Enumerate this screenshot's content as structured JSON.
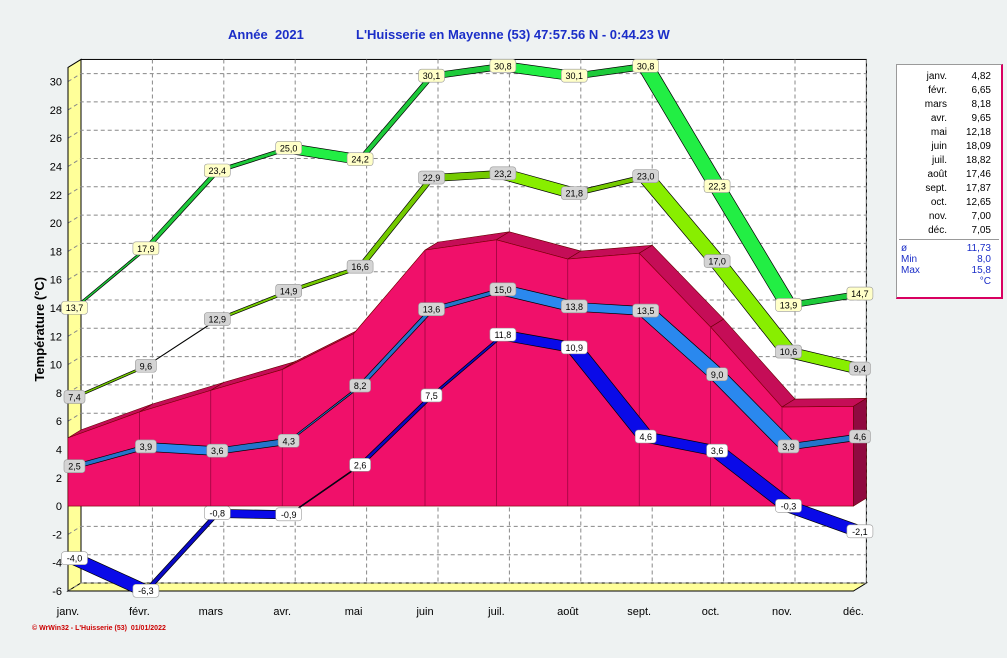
{
  "title_left": "Année  2021",
  "title_right": "L'Huisserie en Mayenne (53) 47:57.56 N - 0:44.23 W",
  "credit": "© WrWin32 - L'Huisserie (53)  01/01/2022",
  "legend": {
    "months": [
      {
        "m": "janv.",
        "v": "4,82"
      },
      {
        "m": "févr.",
        "v": "6,65"
      },
      {
        "m": "mars",
        "v": "8,18"
      },
      {
        "m": "avr.",
        "v": "9,65"
      },
      {
        "m": "mai",
        "v": "12,18"
      },
      {
        "m": "juin",
        "v": "18,09"
      },
      {
        "m": "juil.",
        "v": "18,82"
      },
      {
        "m": "août",
        "v": "17,46"
      },
      {
        "m": "sept.",
        "v": "17,87"
      },
      {
        "m": "oct.",
        "v": "12,65"
      },
      {
        "m": "nov.",
        "v": "7,00"
      },
      {
        "m": "déc.",
        "v": "7,05"
      }
    ],
    "stats": [
      {
        "k": "ø",
        "v": "11,73"
      },
      {
        "k": "Min",
        "v": "8,0"
      },
      {
        "k": "Max",
        "v": "15,8"
      },
      {
        "k": "",
        "v": "°C"
      }
    ]
  },
  "chart_data": {
    "type": "line",
    "ylabel": "Température  (°C)",
    "ylim": [
      -6,
      31
    ],
    "yticks": [
      -6,
      -4,
      -2,
      0,
      2,
      4,
      6,
      8,
      10,
      12,
      14,
      16,
      18,
      20,
      22,
      24,
      26,
      28,
      30
    ],
    "grid": true,
    "categories": [
      "janv.",
      "févr.",
      "mars",
      "avr.",
      "mai",
      "juin",
      "juil.",
      "août",
      "sept.",
      "oct.",
      "nov.",
      "déc."
    ],
    "area": {
      "values": [
        4.82,
        6.65,
        8.18,
        9.65,
        12.18,
        18.09,
        18.82,
        17.46,
        17.87,
        12.65,
        7.0,
        7.05
      ],
      "color": "#f0106a"
    },
    "series": [
      {
        "values": [
          13.7,
          17.9,
          23.4,
          25.0,
          24.2,
          30.1,
          30.8,
          30.1,
          30.8,
          22.3,
          13.9,
          14.7
        ],
        "labels": [
          "13,7",
          "17,9",
          "23,4",
          "25,0",
          "24,2",
          "30,1",
          "30,8",
          "30,1",
          "30,8",
          "22,3",
          "13,9",
          "14,7"
        ],
        "color": "#22ee44",
        "box": "#ffffc8"
      },
      {
        "values": [
          7.4,
          9.6,
          12.9,
          14.9,
          16.6,
          22.9,
          23.2,
          21.8,
          23.0,
          17.0,
          10.6,
          9.4
        ],
        "labels": [
          "7,4",
          "9,6",
          "12,9",
          "14,9",
          "16,6",
          "22,9",
          "23,2",
          "21,8",
          "23,0",
          "17,0",
          "10,6",
          "9,4"
        ],
        "color": "#88ee00",
        "box": "#d4d4d4"
      },
      {
        "values": [
          2.5,
          3.9,
          3.6,
          4.3,
          8.2,
          13.6,
          15.0,
          13.8,
          13.5,
          9.0,
          3.9,
          4.6
        ],
        "labels": [
          "2,5",
          "3,9",
          "3,6",
          "4,3",
          "8,2",
          "13,6",
          "15,0",
          "13,8",
          "13,5",
          "9,0",
          "3,9",
          "4,6"
        ],
        "color": "#2a88ee",
        "box": "#d4d4d4"
      },
      {
        "values": [
          -4.0,
          -6.3,
          -0.8,
          -0.9,
          2.6,
          7.5,
          11.8,
          10.9,
          4.6,
          3.6,
          -0.3,
          -2.1
        ],
        "labels": [
          "-4,0",
          "-6,3",
          "-0,8",
          "-0,9",
          "2,6",
          "7,5",
          "11,8",
          "10,9",
          "4,6",
          "3,6",
          "-0,3",
          "-2,1"
        ],
        "color": "#0a0ae8",
        "box": "#ffffff"
      }
    ]
  }
}
